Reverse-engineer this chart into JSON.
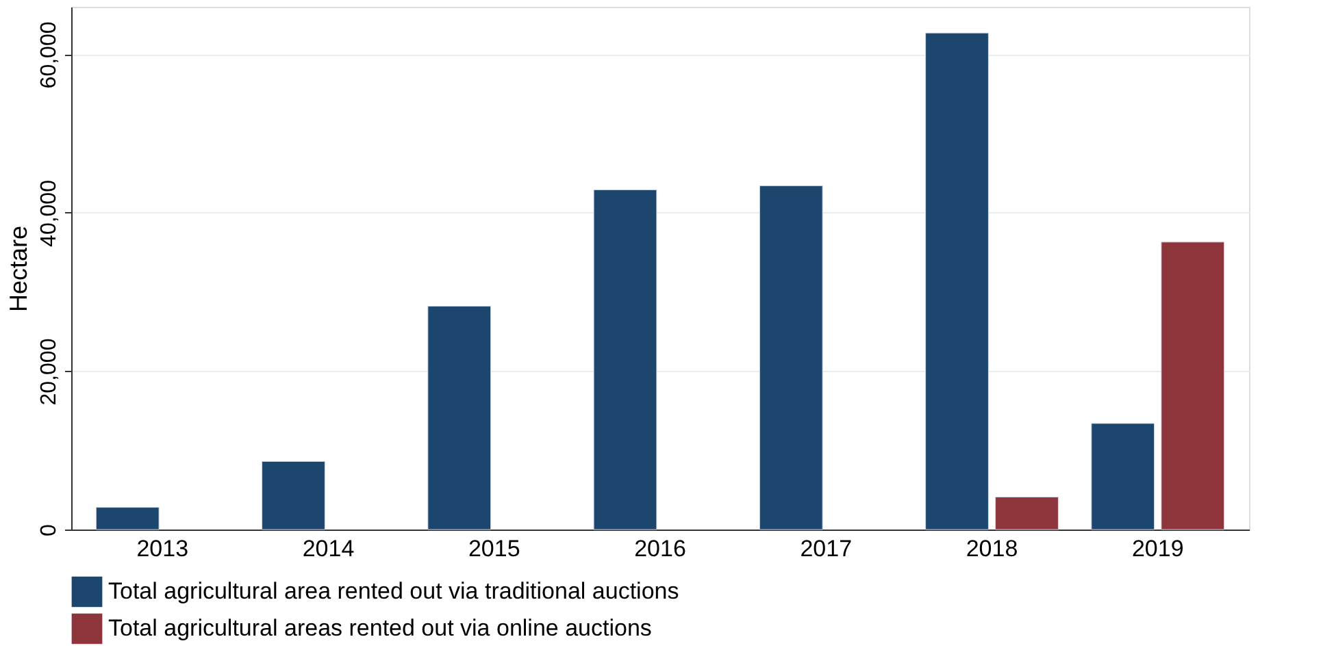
{
  "chart_data": {
    "type": "bar",
    "ylabel": "Hectare",
    "categories": [
      "2013",
      "2014",
      "2015",
      "2016",
      "2017",
      "2018",
      "2019"
    ],
    "series": [
      {
        "name": "Total agricultural area rented out via traditional auctions",
        "color": "#1c466e",
        "values": [
          2800,
          8600,
          28200,
          42900,
          43400,
          62700,
          13400
        ]
      },
      {
        "name": "Total agricultural areas rented out via online auctions",
        "color": "#8e343b",
        "values": [
          null,
          null,
          null,
          null,
          null,
          4100,
          36300
        ]
      }
    ],
    "ylim": [
      0,
      66000
    ],
    "yticks": [
      {
        "value": 0,
        "label": "0"
      },
      {
        "value": 20000,
        "label": "20,000"
      },
      {
        "value": 40000,
        "label": "40,000"
      },
      {
        "value": 60000,
        "label": "60,000"
      }
    ],
    "grid": "y",
    "legend": "bottom"
  }
}
